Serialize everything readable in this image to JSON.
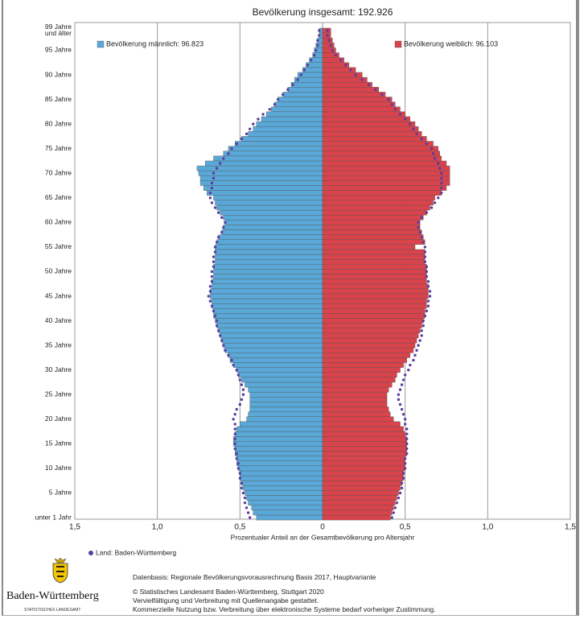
{
  "chart_data": {
    "type": "pyramid",
    "title": "Bevölkerung insgesamt: 192.926",
    "x_label": "Prozentualer Anteil an der Gesamtbevölkerung pro Altersjahr",
    "categories": [
      "unter 1 Jahr",
      null,
      null,
      null,
      null,
      "5 Jahre",
      null,
      null,
      null,
      null,
      "10 Jahre",
      null,
      null,
      null,
      null,
      "15 Jahre",
      null,
      null,
      null,
      null,
      "20 Jahre",
      null,
      null,
      null,
      null,
      "25 Jahre",
      null,
      null,
      null,
      null,
      "30 Jahre",
      null,
      null,
      null,
      null,
      "35 Jahre",
      null,
      null,
      null,
      null,
      "40 Jahre",
      null,
      null,
      null,
      null,
      "45 Jahre",
      null,
      null,
      null,
      null,
      "50 Jahre",
      null,
      null,
      null,
      null,
      "55 Jahre",
      null,
      null,
      null,
      null,
      "60 Jahre",
      null,
      null,
      null,
      null,
      "65 Jahre",
      null,
      null,
      null,
      null,
      "70 Jahre",
      null,
      null,
      null,
      null,
      "75 Jahre",
      null,
      null,
      null,
      null,
      "80 Jahre",
      null,
      null,
      null,
      null,
      "85 Jahre",
      null,
      null,
      null,
      null,
      "90 Jahre",
      null,
      null,
      null,
      null,
      "95 Jahre",
      null,
      null,
      null,
      "99 Jahre\nund älter"
    ],
    "xlim": [
      -1.5,
      1.5
    ],
    "xticks": [
      {
        "value": -1.5,
        "label": "1,5"
      },
      {
        "value": -1,
        "label": "1,0"
      },
      {
        "value": -0.5,
        "label": "0,5"
      },
      0,
      {
        "value": 0.5,
        "label": "0,5"
      },
      {
        "value": 1,
        "label": "1,0"
      },
      {
        "value": 1.5,
        "label": "1,5"
      }
    ],
    "grid": true,
    "series": [
      {
        "name": "Bevölkerung männlich: 96.823",
        "color": "#5aa8d8",
        "side": "left",
        "values": [
          0.4,
          0.42,
          0.43,
          0.45,
          0.46,
          0.47,
          0.48,
          0.49,
          0.5,
          0.5,
          0.51,
          0.52,
          0.52,
          0.53,
          0.53,
          0.54,
          0.54,
          0.53,
          0.52,
          0.5,
          0.46,
          0.45,
          0.44,
          0.44,
          0.44,
          0.44,
          0.45,
          0.47,
          0.49,
          0.51,
          0.52,
          0.54,
          0.56,
          0.57,
          0.59,
          0.6,
          0.61,
          0.62,
          0.63,
          0.64,
          0.65,
          0.66,
          0.66,
          0.67,
          0.67,
          0.68,
          0.68,
          0.67,
          0.67,
          0.66,
          0.66,
          0.66,
          0.65,
          0.65,
          0.65,
          0.65,
          0.64,
          0.63,
          0.61,
          0.6,
          0.59,
          0.6,
          0.62,
          0.64,
          0.65,
          0.66,
          0.7,
          0.72,
          0.74,
          0.74,
          0.75,
          0.76,
          0.71,
          0.66,
          0.6,
          0.57,
          0.53,
          0.49,
          0.45,
          0.42,
          0.4,
          0.37,
          0.34,
          0.31,
          0.29,
          0.27,
          0.24,
          0.21,
          0.19,
          0.17,
          0.15,
          0.12,
          0.1,
          0.08,
          0.06,
          0.05,
          0.04,
          0.03,
          0.02,
          0.02
        ]
      },
      {
        "name": "Bevölkerung weiblich: 96.103",
        "color": "#d9434c",
        "side": "right",
        "values": [
          0.41,
          0.42,
          0.43,
          0.44,
          0.45,
          0.46,
          0.47,
          0.48,
          0.49,
          0.49,
          0.5,
          0.5,
          0.5,
          0.51,
          0.51,
          0.51,
          0.51,
          0.5,
          0.49,
          0.47,
          0.43,
          0.41,
          0.4,
          0.39,
          0.39,
          0.39,
          0.4,
          0.42,
          0.44,
          0.45,
          0.47,
          0.49,
          0.51,
          0.53,
          0.55,
          0.56,
          0.57,
          0.58,
          0.59,
          0.6,
          0.61,
          0.62,
          0.62,
          0.63,
          0.63,
          0.64,
          0.64,
          0.64,
          0.63,
          0.63,
          0.63,
          0.63,
          0.62,
          0.62,
          0.62,
          0.56,
          0.62,
          0.61,
          0.6,
          0.59,
          0.59,
          0.61,
          0.63,
          0.65,
          0.67,
          0.68,
          0.72,
          0.75,
          0.77,
          0.77,
          0.77,
          0.77,
          0.75,
          0.72,
          0.71,
          0.7,
          0.67,
          0.63,
          0.6,
          0.58,
          0.56,
          0.53,
          0.5,
          0.47,
          0.44,
          0.42,
          0.38,
          0.34,
          0.3,
          0.27,
          0.24,
          0.2,
          0.16,
          0.13,
          0.1,
          0.08,
          0.07,
          0.06,
          0.05,
          0.05
        ]
      }
    ],
    "reference": {
      "name": "Land: Baden-Württemberg",
      "color": "#5b3c9f",
      "left_values": [
        0.44,
        0.45,
        0.46,
        0.47,
        0.47,
        0.48,
        0.49,
        0.49,
        0.5,
        0.5,
        0.51,
        0.51,
        0.52,
        0.52,
        0.53,
        0.53,
        0.53,
        0.53,
        0.53,
        0.53,
        0.54,
        0.53,
        0.52,
        0.5,
        0.49,
        0.48,
        0.48,
        0.49,
        0.5,
        0.51,
        0.52,
        0.54,
        0.55,
        0.57,
        0.59,
        0.6,
        0.61,
        0.62,
        0.63,
        0.64,
        0.64,
        0.65,
        0.66,
        0.67,
        0.68,
        0.69,
        0.68,
        0.68,
        0.67,
        0.67,
        0.67,
        0.66,
        0.66,
        0.66,
        0.65,
        0.65,
        0.64,
        0.63,
        0.61,
        0.6,
        0.59,
        0.61,
        0.63,
        0.65,
        0.67,
        0.68,
        0.68,
        0.67,
        0.67,
        0.66,
        0.66,
        0.64,
        0.62,
        0.6,
        0.57,
        0.55,
        0.52,
        0.49,
        0.46,
        0.44,
        0.42,
        0.39,
        0.36,
        0.32,
        0.29,
        0.27,
        0.24,
        0.21,
        0.18,
        0.15,
        0.13,
        0.11,
        0.09,
        0.07,
        0.05,
        0.04,
        0.03,
        0.03,
        0.02,
        0.02
      ],
      "right_values": [
        0.42,
        0.43,
        0.44,
        0.45,
        0.46,
        0.47,
        0.48,
        0.48,
        0.49,
        0.49,
        0.5,
        0.5,
        0.5,
        0.51,
        0.51,
        0.51,
        0.51,
        0.51,
        0.51,
        0.5,
        0.5,
        0.49,
        0.48,
        0.47,
        0.46,
        0.46,
        0.47,
        0.48,
        0.49,
        0.5,
        0.52,
        0.53,
        0.55,
        0.56,
        0.57,
        0.58,
        0.59,
        0.6,
        0.6,
        0.61,
        0.61,
        0.62,
        0.63,
        0.64,
        0.64,
        0.65,
        0.65,
        0.64,
        0.64,
        0.63,
        0.63,
        0.63,
        0.62,
        0.62,
        0.62,
        0.62,
        0.61,
        0.6,
        0.59,
        0.58,
        0.58,
        0.6,
        0.63,
        0.66,
        0.68,
        0.7,
        0.72,
        0.72,
        0.72,
        0.72,
        0.72,
        0.71,
        0.7,
        0.68,
        0.67,
        0.66,
        0.63,
        0.6,
        0.57,
        0.55,
        0.53,
        0.5,
        0.47,
        0.44,
        0.42,
        0.4,
        0.36,
        0.32,
        0.28,
        0.24,
        0.2,
        0.17,
        0.14,
        0.11,
        0.08,
        0.06,
        0.05,
        0.04,
        0.03,
        0.03
      ]
    }
  },
  "footer": {
    "source": "Datenbasis: Regionale Bevölkerungsvorausrechnung Basis 2017, Hauptvariante",
    "lines": [
      "© Statistisches Landesamt Baden-Württemberg, Stuttgart 2020",
      "Vervielfältigung und Verbreitung mit Quellenangabe gestattet.",
      "Kommerzielle Nutzung bzw. Verbreitung über elektronische Systeme bedarf vorheriger Zustimmung."
    ]
  },
  "logo": {
    "name": "Baden-Württemberg",
    "subtitle": "STATISTISCHES LANDESAMT"
  }
}
